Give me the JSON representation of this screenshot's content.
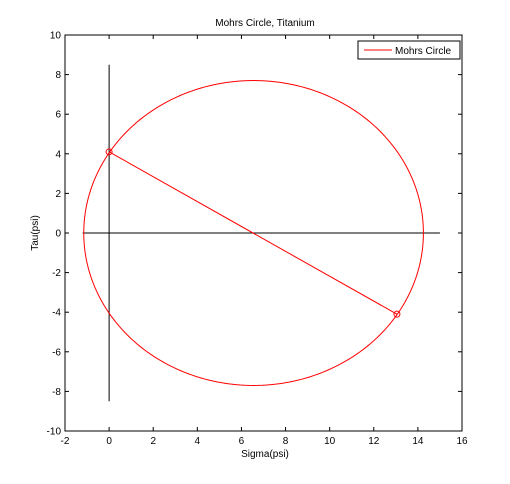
{
  "chart_data": {
    "type": "line",
    "title": "Mohrs Circle, Titanium",
    "xlabel": "Sigma(psi)",
    "ylabel": "Tau(psi)",
    "xlim": [
      -2,
      16
    ],
    "ylim": [
      -10,
      10
    ],
    "xticks": [
      -2,
      0,
      2,
      4,
      6,
      8,
      10,
      12,
      14,
      16
    ],
    "yticks": [
      -10,
      -8,
      -6,
      -4,
      -2,
      0,
      2,
      4,
      6,
      8,
      10
    ],
    "grid": false,
    "legend": {
      "placement": "top-right",
      "entries": [
        "Mohrs Circle"
      ]
    },
    "colors": {
      "series": "#ff0000",
      "axes": "#000000"
    },
    "series": [
      {
        "name": "Mohrs Circle",
        "kind": "circle",
        "center": [
          6.55,
          0
        ],
        "radius": 7.7
      }
    ],
    "diameter_line": {
      "x": [
        0,
        13.05
      ],
      "y": [
        4.1,
        -4.1
      ]
    },
    "markers": {
      "x": [
        0,
        13.05
      ],
      "y": [
        4.1,
        -4.1
      ]
    },
    "reference_lines": {
      "horizontal": {
        "y": 0,
        "x": [
          -1.2,
          15
        ]
      },
      "vertical": {
        "x": 0,
        "y": [
          -8.5,
          8.5
        ]
      }
    }
  }
}
